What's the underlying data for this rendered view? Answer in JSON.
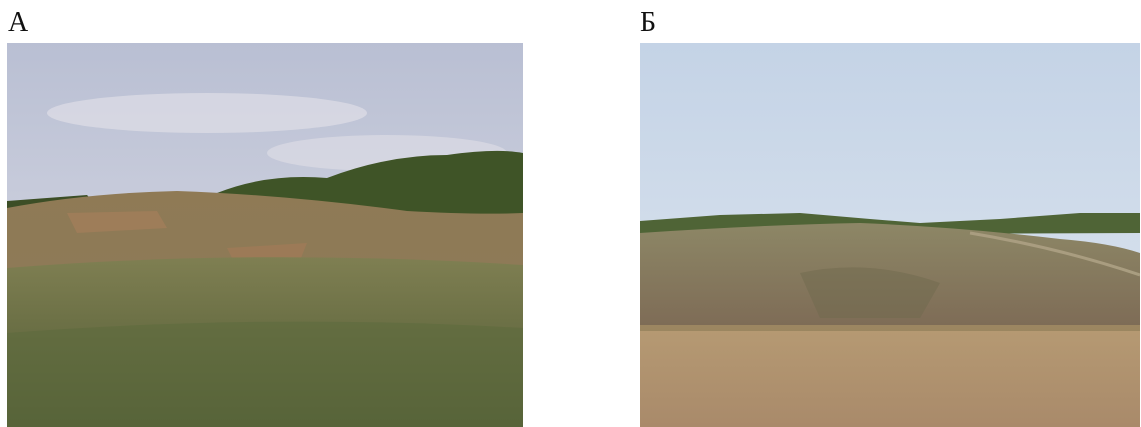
{
  "panels": [
    {
      "label": "А"
    },
    {
      "label": "Б"
    }
  ]
}
